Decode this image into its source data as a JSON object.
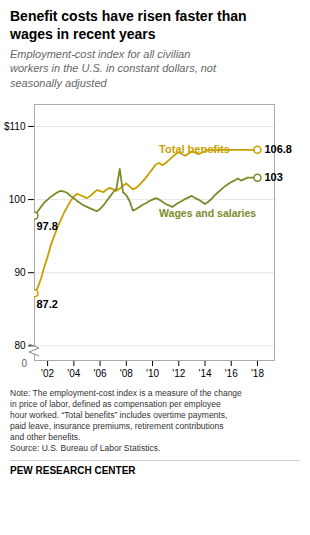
{
  "chart_data": {
    "type": "line",
    "title": "Benefit costs have risen faster than\nwages in recent years",
    "subtitle": "Employment-cost index for all civilian\nworkers in the U.S. in constant dollars, not\nseasonally adjusted",
    "note": "Note: The employment-cost index is a measure of the change\nin price of labor, defined as compensation per employee\nhour worked. “Total benefits” includes overtime payments,\npaid leave, insurance premiums, retirement contributions\nand other benefits.\nSource: U.S. Bureau of Labor Statistics.",
    "source": "PEW RESEARCH CENTER",
    "annotations": [
      {
        "text": "0"
      }
    ],
    "x": [
      2001,
      2001.25,
      2001.5,
      2001.75,
      2002,
      2002.25,
      2002.5,
      2002.75,
      2003,
      2003.25,
      2003.5,
      2003.75,
      2004,
      2004.25,
      2004.5,
      2004.75,
      2005,
      2005.25,
      2005.5,
      2005.75,
      2006,
      2006.25,
      2006.5,
      2006.75,
      2007,
      2007.25,
      2007.5,
      2007.75,
      2008,
      2008.25,
      2008.5,
      2008.75,
      2009,
      2009.25,
      2009.5,
      2009.75,
      2010,
      2010.25,
      2010.5,
      2010.75,
      2011,
      2011.25,
      2011.5,
      2011.75,
      2012,
      2012.25,
      2012.5,
      2012.75,
      2013,
      2013.25,
      2013.5,
      2013.75,
      2014,
      2014.25,
      2014.5,
      2014.75,
      2015,
      2015.25,
      2015.5,
      2015.75,
      2016,
      2016.25,
      2016.5,
      2016.75,
      2017,
      2017.25,
      2017.5,
      2017.75,
      2018
    ],
    "series": [
      {
        "name": "Total benefits",
        "color": "#C8A000",
        "values": [
          87.2,
          88.0,
          89.2,
          90.8,
          92.2,
          93.8,
          95.0,
          96.2,
          97.2,
          98.2,
          99.0,
          99.8,
          100.4,
          100.8,
          100.6,
          100.4,
          100.2,
          100.5,
          100.9,
          101.3,
          101.2,
          101.0,
          101.4,
          101.6,
          101.4,
          101.2,
          101.5,
          101.9,
          102.2,
          101.8,
          101.4,
          101.6,
          102.0,
          102.5,
          103.0,
          103.6,
          104.2,
          104.8,
          105.0,
          104.7,
          105.0,
          105.4,
          105.8,
          106.2,
          106.5,
          106.2,
          106.0,
          106.3,
          106.6,
          106.4,
          106.2,
          106.4,
          106.6,
          106.8,
          106.8,
          106.7,
          106.8,
          106.8,
          106.8,
          106.8,
          106.8,
          106.8,
          106.8,
          106.8,
          106.8,
          106.8,
          106.8,
          106.8,
          106.8
        ],
        "value_labels": [
          "87.2",
          null,
          null,
          null,
          null,
          null,
          null,
          null,
          null,
          null,
          null,
          null,
          null,
          null,
          null,
          null,
          null,
          null,
          null,
          null,
          null,
          null,
          null,
          null,
          null,
          null,
          null,
          null,
          null,
          null,
          null,
          null,
          null,
          null,
          null,
          null,
          null,
          null,
          null,
          null,
          null,
          null,
          null,
          null,
          null,
          null,
          null,
          null,
          null,
          null,
          null,
          null,
          null,
          null,
          null,
          null,
          null,
          null,
          null,
          null,
          null,
          null,
          null,
          null,
          null,
          null,
          null,
          null,
          "106.8"
        ]
      },
      {
        "name": "Wages and salaries",
        "color": "#7A8C2A",
        "values": [
          97.8,
          98.4,
          99.0,
          99.6,
          100.0,
          100.4,
          100.7,
          101.0,
          101.2,
          101.1,
          100.9,
          100.5,
          100.2,
          99.8,
          99.5,
          99.2,
          99.0,
          98.8,
          98.6,
          98.4,
          98.7,
          99.2,
          99.8,
          100.4,
          101.0,
          101.5,
          104.2,
          101.0,
          100.6,
          99.8,
          98.5,
          98.7,
          99.0,
          99.3,
          99.5,
          99.8,
          100.0,
          100.2,
          100.0,
          99.7,
          99.4,
          99.2,
          99.0,
          99.3,
          99.6,
          99.8,
          100.1,
          100.3,
          100.5,
          100.2,
          100.0,
          99.7,
          99.4,
          99.7,
          100.1,
          100.6,
          101.0,
          101.4,
          101.8,
          102.1,
          102.4,
          102.6,
          102.9,
          102.6,
          102.8,
          103.0,
          103.0,
          103.0,
          103.0
        ],
        "value_labels": [
          "97.8",
          null,
          null,
          null,
          null,
          null,
          null,
          null,
          null,
          null,
          null,
          null,
          null,
          null,
          null,
          null,
          null,
          null,
          null,
          null,
          null,
          null,
          null,
          null,
          null,
          null,
          null,
          null,
          null,
          null,
          null,
          null,
          null,
          null,
          null,
          null,
          null,
          null,
          null,
          null,
          null,
          null,
          null,
          null,
          null,
          null,
          null,
          null,
          null,
          null,
          null,
          null,
          null,
          null,
          null,
          null,
          null,
          null,
          null,
          null,
          null,
          null,
          null,
          null,
          null,
          null,
          null,
          null,
          "103"
        ]
      }
    ],
    "xlim": [
      2001.0,
      2019.3
    ],
    "xticks": [
      {
        "value": 2002,
        "label": "'02"
      },
      {
        "value": 2004,
        "label": "'04"
      },
      {
        "value": 2006,
        "label": "'06"
      },
      {
        "value": 2008,
        "label": "'08"
      },
      {
        "value": 2010,
        "label": "'10"
      },
      {
        "value": 2012,
        "label": "'12"
      },
      {
        "value": 2014,
        "label": "'14"
      },
      {
        "value": 2016,
        "label": "'16"
      },
      {
        "value": 2018,
        "label": "'18"
      }
    ],
    "ylim": [
      78,
      113
    ],
    "yticks": [
      80,
      90,
      100,
      {
        "value": 110,
        "label": "$110"
      }
    ],
    "grid": true
  }
}
